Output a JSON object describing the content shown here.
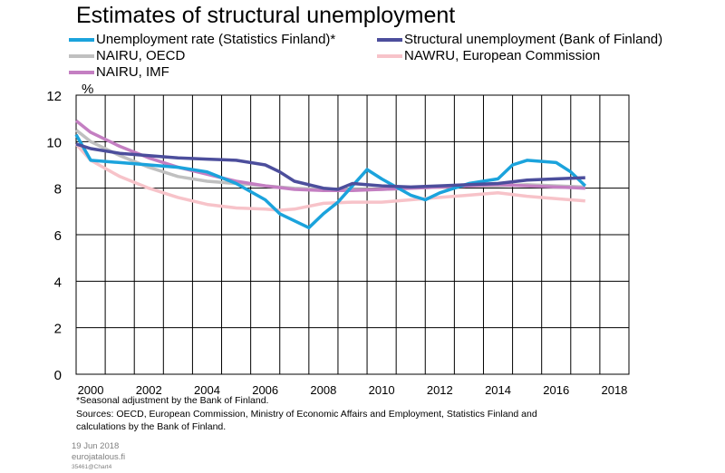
{
  "title": "Estimates of structural unemployment",
  "chart_data": {
    "type": "line",
    "ylabel": "%",
    "ylim": [
      0,
      12
    ],
    "yticks": [
      0,
      2,
      4,
      6,
      8,
      10,
      12
    ],
    "xlim": [
      1999.5,
      2018.5
    ],
    "xticks": [
      2000,
      2002,
      2004,
      2006,
      2008,
      2010,
      2012,
      2014,
      2016,
      2018
    ],
    "grid": true,
    "legend_position": "top",
    "series": [
      {
        "name": "Unemployment rate (Statistics Finland)*",
        "color": "#1ba3dc",
        "x": [
          1999.5,
          2000.0,
          2001.0,
          2002.0,
          2003.0,
          2004.0,
          2005.0,
          2006.0,
          2006.5,
          2007.5,
          2008.0,
          2008.5,
          2009.0,
          2009.5,
          2010.0,
          2011.0,
          2011.5,
          2012.0,
          2013.0,
          2014.0,
          2014.5,
          2015.0,
          2016.0,
          2016.5,
          2017.0
        ],
        "y": [
          10.3,
          9.2,
          9.1,
          9.0,
          8.9,
          8.7,
          8.2,
          7.5,
          6.9,
          6.3,
          6.9,
          7.4,
          8.1,
          8.8,
          8.4,
          7.7,
          7.5,
          7.8,
          8.2,
          8.4,
          9.0,
          9.2,
          9.1,
          8.7,
          8.1
        ]
      },
      {
        "name": "Structural unemployment (Bank of Finland)",
        "color": "#4c4e9c",
        "x": [
          1999.5,
          2000.0,
          2001.0,
          2002.0,
          2003.0,
          2004.0,
          2005.0,
          2006.0,
          2006.5,
          2007.0,
          2008.0,
          2008.5,
          2009.0,
          2010.0,
          2011.0,
          2012.0,
          2013.0,
          2014.0,
          2015.0,
          2016.0,
          2017.0
        ],
        "y": [
          9.9,
          9.7,
          9.5,
          9.4,
          9.3,
          9.25,
          9.2,
          9.0,
          8.7,
          8.3,
          8.0,
          7.95,
          8.2,
          8.1,
          8.05,
          8.1,
          8.15,
          8.2,
          8.35,
          8.4,
          8.45
        ]
      },
      {
        "name": "NAIRU, OECD",
        "color": "#c0c0c0",
        "x": [
          1999.5,
          2000.0,
          2001.0,
          2002.0,
          2003.0,
          2004.0,
          2005.0,
          2006.0,
          2007.0,
          2008.0,
          2009.0,
          2010.0,
          2011.0,
          2012.0,
          2013.0,
          2014.0,
          2015.0,
          2016.0,
          2017.0
        ],
        "y": [
          10.5,
          10.0,
          9.4,
          8.9,
          8.5,
          8.3,
          8.2,
          8.1,
          8.0,
          7.95,
          7.95,
          7.95,
          8.0,
          8.05,
          8.1,
          8.1,
          8.15,
          8.1,
          8.05
        ]
      },
      {
        "name": "NAWRU, European Commission",
        "color": "#f7c3c9",
        "x": [
          1999.5,
          2000.0,
          2001.0,
          2002.0,
          2003.0,
          2004.0,
          2005.0,
          2006.0,
          2006.5,
          2007.0,
          2008.0,
          2009.0,
          2010.0,
          2011.0,
          2012.0,
          2013.0,
          2014.0,
          2015.0,
          2016.0,
          2017.0
        ],
        "y": [
          9.9,
          9.2,
          8.5,
          8.0,
          7.6,
          7.3,
          7.15,
          7.1,
          7.05,
          7.1,
          7.35,
          7.4,
          7.4,
          7.5,
          7.6,
          7.7,
          7.8,
          7.65,
          7.55,
          7.45
        ]
      },
      {
        "name": "NAIRU, IMF",
        "color": "#c47fc2",
        "x": [
          1999.5,
          2000.0,
          2001.0,
          2002.0,
          2003.0,
          2004.0,
          2005.0,
          2006.0,
          2007.0,
          2008.0,
          2009.0,
          2010.0,
          2011.0,
          2012.0,
          2013.0,
          2014.0,
          2015.0,
          2016.0,
          2017.0
        ],
        "y": [
          10.9,
          10.4,
          9.8,
          9.3,
          8.9,
          8.6,
          8.3,
          8.1,
          7.95,
          7.9,
          7.9,
          7.95,
          8.0,
          8.05,
          8.1,
          8.15,
          8.1,
          8.05,
          8.0
        ]
      }
    ]
  },
  "notes": {
    "seasonal": "*Seasonal adjustment by the Bank of Finland.",
    "sources_line1": "Sources: OECD, European Commission, Ministry of Economic Affairs and Employment, Statistics Finland and",
    "sources_line2": "calculations by the Bank of Finland."
  },
  "footer": {
    "date": "19 Jun 2018",
    "site": "eurojatalous.fi",
    "code": "35461@Chart4"
  }
}
